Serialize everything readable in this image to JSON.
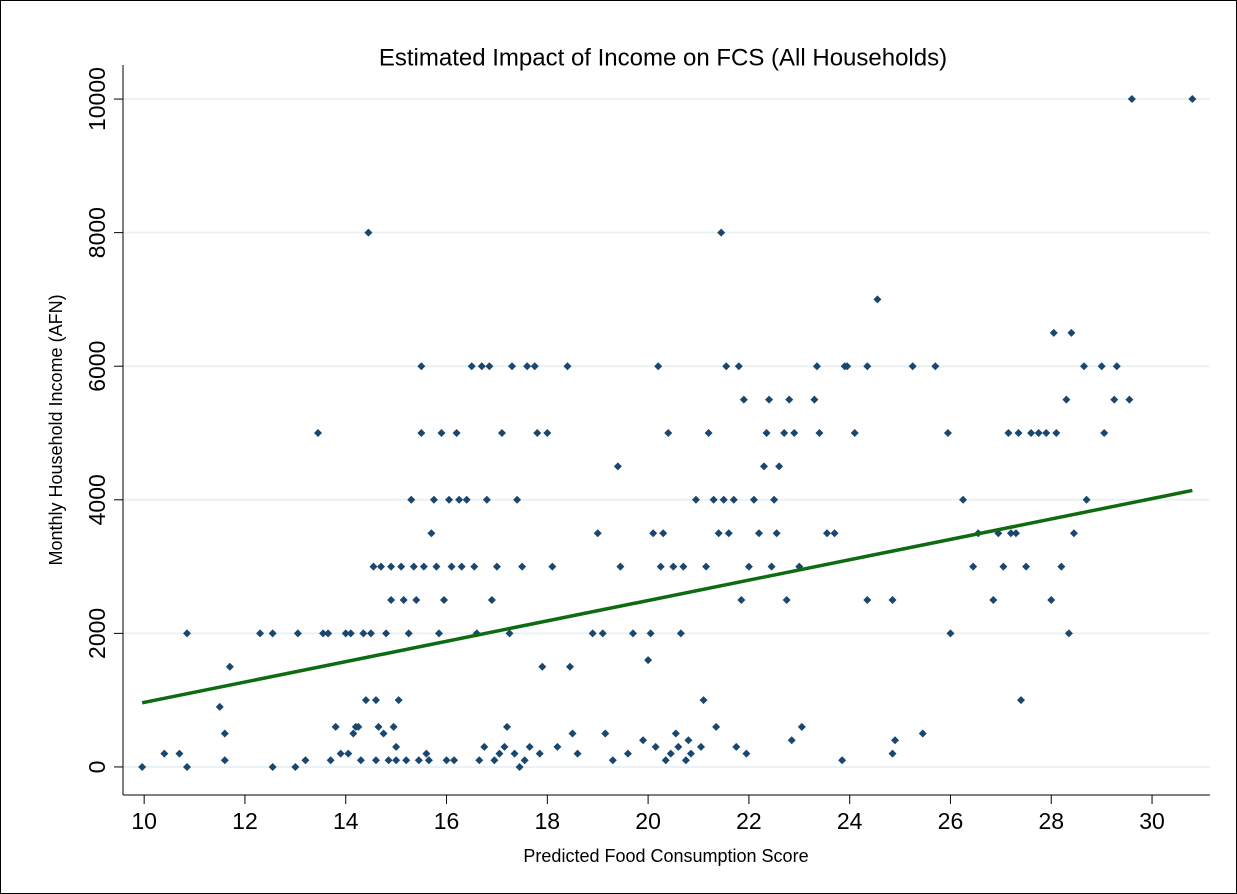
{
  "chart_data": {
    "type": "scatter",
    "title": "Estimated Impact of Income on FCS (All Households)",
    "x_label": "Predicted Food Consumption Score",
    "y_label": "Monthly Household Income (AFN)",
    "xlim": [
      9.58,
      31.15
    ],
    "ylim": [
      -420,
      10510
    ],
    "xticks": [
      10,
      12,
      14,
      16,
      18,
      20,
      22,
      24,
      26,
      28,
      30
    ],
    "yticks": [
      0,
      2000,
      4000,
      6000,
      8000,
      10000
    ],
    "grid": true,
    "series": [
      {
        "type": "scatter",
        "color": "#1a476f",
        "x": [
          9.96,
          10.4,
          10.7,
          10.85,
          10.85,
          11.5,
          11.6,
          11.6,
          11.7,
          12.3,
          12.55,
          12.55,
          13.05,
          13.0,
          13.2,
          13.45,
          13.55,
          13.65,
          13.7,
          13.8,
          13.9,
          14.0,
          14.05,
          14.1,
          14.15,
          14.2,
          14.25,
          14.3,
          14.35,
          14.4,
          14.45,
          14.5,
          14.55,
          14.6,
          14.6,
          14.65,
          14.7,
          14.75,
          14.8,
          14.85,
          14.9,
          14.9,
          14.95,
          15.0,
          15.0,
          15.05,
          15.1,
          15.15,
          15.2,
          15.25,
          15.3,
          15.35,
          15.4,
          15.45,
          15.5,
          15.5,
          15.55,
          15.6,
          15.65,
          15.7,
          15.75,
          15.8,
          15.85,
          15.9,
          15.95,
          16.0,
          16.05,
          16.1,
          16.15,
          16.2,
          16.25,
          16.3,
          16.4,
          16.5,
          16.55,
          16.6,
          16.65,
          16.7,
          16.75,
          16.8,
          16.85,
          16.9,
          16.95,
          17.0,
          17.05,
          17.1,
          17.15,
          17.2,
          17.25,
          17.3,
          17.35,
          17.4,
          17.45,
          17.5,
          17.55,
          17.6,
          17.65,
          17.75,
          17.8,
          17.85,
          17.9,
          18.0,
          18.1,
          18.2,
          18.4,
          18.45,
          18.5,
          18.6,
          18.9,
          19.0,
          19.1,
          19.15,
          19.3,
          19.4,
          19.45,
          19.6,
          19.7,
          19.9,
          20.0,
          20.05,
          20.1,
          20.15,
          20.2,
          20.25,
          20.3,
          20.35,
          20.4,
          20.45,
          20.5,
          20.55,
          20.6,
          20.65,
          20.7,
          20.75,
          20.8,
          20.85,
          20.95,
          21.05,
          21.1,
          21.15,
          21.2,
          21.3,
          21.35,
          21.4,
          21.45,
          21.5,
          21.55,
          21.6,
          21.7,
          21.75,
          21.8,
          21.85,
          21.9,
          21.95,
          22.0,
          22.1,
          22.2,
          22.3,
          22.35,
          22.4,
          22.45,
          22.5,
          22.55,
          22.6,
          22.7,
          22.75,
          22.8,
          22.85,
          22.9,
          23.0,
          23.05,
          23.3,
          23.35,
          23.4,
          23.55,
          23.7,
          23.85,
          23.9,
          23.95,
          24.1,
          24.35,
          24.35,
          24.55,
          24.85,
          24.85,
          24.9,
          25.25,
          25.45,
          25.7,
          25.95,
          26.0,
          26.25,
          26.45,
          26.55,
          26.85,
          26.95,
          27.05,
          27.15,
          27.2,
          27.3,
          27.35,
          27.4,
          27.5,
          27.6,
          27.75,
          27.9,
          28.0,
          28.05,
          28.1,
          28.2,
          28.3,
          28.35,
          28.4,
          28.45,
          28.65,
          28.7,
          29.0,
          29.05,
          29.25,
          29.3,
          29.55,
          29.6,
          30.8
        ],
        "values": [
          0,
          200,
          200,
          0,
          2000,
          900,
          500,
          100,
          1500,
          2000,
          2000,
          0,
          2000,
          0,
          100,
          5000,
          2000,
          2000,
          100,
          600,
          200,
          2000,
          200,
          2000,
          500,
          600,
          600,
          100,
          2000,
          1000,
          8000,
          2000,
          3000,
          1000,
          100,
          600,
          3000,
          500,
          2000,
          100,
          2500,
          3000,
          600,
          100,
          300,
          1000,
          3000,
          2500,
          100,
          2000,
          4000,
          3000,
          2500,
          100,
          6000,
          5000,
          3000,
          200,
          100,
          3500,
          4000,
          3000,
          2000,
          5000,
          2500,
          100,
          4000,
          3000,
          100,
          5000,
          4000,
          3000,
          4000,
          6000,
          3000,
          2000,
          100,
          6000,
          300,
          4000,
          6000,
          2500,
          100,
          3000,
          200,
          5000,
          300,
          600,
          2000,
          6000,
          200,
          4000,
          0,
          3000,
          100,
          6000,
          300,
          6000,
          5000,
          200,
          1500,
          5000,
          3000,
          300,
          6000,
          1500,
          500,
          200,
          2000,
          3500,
          2000,
          500,
          100,
          4500,
          3000,
          200,
          2000,
          400,
          1600,
          2000,
          3500,
          300,
          6000,
          3000,
          3500,
          100,
          5000,
          200,
          3000,
          500,
          300,
          2000,
          3000,
          100,
          400,
          200,
          4000,
          300,
          1000,
          3000,
          5000,
          4000,
          600,
          3500,
          8000,
          4000,
          6000,
          3500,
          4000,
          300,
          6000,
          2500,
          5500,
          200,
          3000,
          4000,
          3500,
          4500,
          5000,
          5500,
          3000,
          4000,
          3500,
          4500,
          5000,
          2500,
          5500,
          400,
          5000,
          3000,
          600,
          5500,
          6000,
          5000,
          3500,
          3500,
          100,
          6000,
          6000,
          5000,
          6000,
          2500,
          7000,
          2500,
          200,
          400,
          6000,
          500,
          6000,
          5000,
          2000,
          4000,
          3000,
          3500,
          2500,
          3500,
          3000,
          5000,
          3500,
          3500,
          5000,
          1000,
          3000,
          5000,
          5000,
          5000,
          2500,
          6500,
          5000,
          3000,
          5500,
          2000,
          6500,
          3500,
          6000,
          4000,
          6000,
          5000,
          5500,
          6000,
          5500,
          10000,
          10000
        ]
      },
      {
        "type": "line",
        "color": "#0f6b12",
        "x": [
          9.96,
          30.8
        ],
        "values": [
          960,
          4140
        ]
      }
    ]
  }
}
